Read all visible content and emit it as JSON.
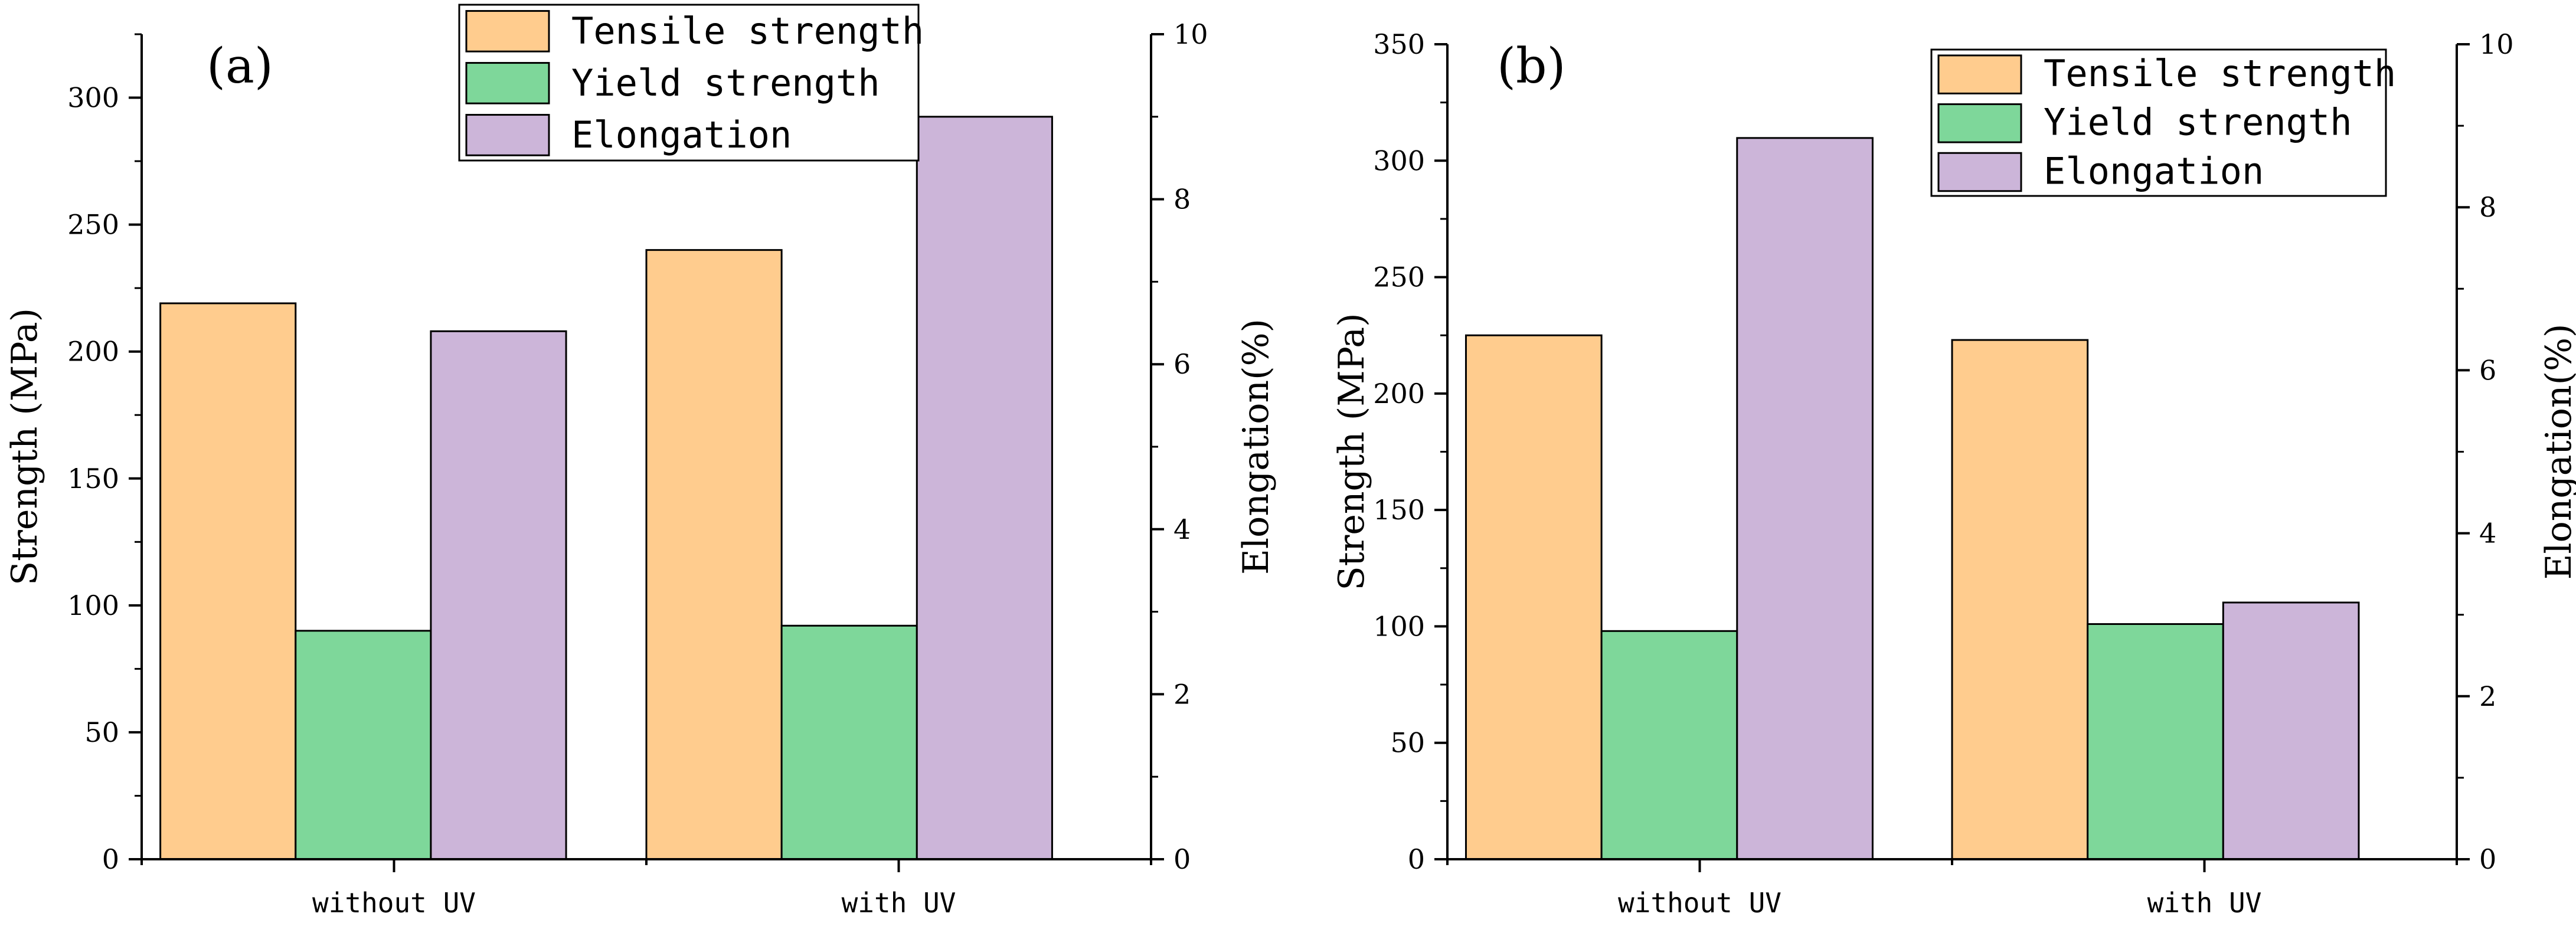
{
  "colors": {
    "tensile": "#ffcc8e",
    "yield": "#7ed79a",
    "elongation": "#ccb5d9",
    "outline": "#000000"
  },
  "chart_data": [
    {
      "type": "bar",
      "panel_label": "(a)",
      "categories": [
        "without UV",
        "with UV"
      ],
      "ylabel": "Strength (MPa)",
      "y2label": "Elongation(%)",
      "ylim": [
        0,
        325
      ],
      "y2lim": [
        0,
        10
      ],
      "yticks": [
        0,
        50,
        100,
        150,
        200,
        250,
        300
      ],
      "y2ticks": [
        0,
        2,
        4,
        6,
        8,
        10
      ],
      "legend_position": "top-center",
      "series": [
        {
          "name": "Tensile strength",
          "axis": "left",
          "color_key": "tensile",
          "values": [
            219,
            240
          ]
        },
        {
          "name": "Yield strength",
          "axis": "left",
          "color_key": "yield",
          "values": [
            90,
            92
          ]
        },
        {
          "name": "Elongation",
          "axis": "right",
          "color_key": "elongation",
          "values": [
            6.4,
            9.0
          ]
        }
      ]
    },
    {
      "type": "bar",
      "panel_label": "(b)",
      "categories": [
        "without UV",
        "with UV"
      ],
      "ylabel": "Strength (MPa)",
      "y2label": "Elongation(%)",
      "ylim": [
        0,
        350
      ],
      "y2lim": [
        0,
        10
      ],
      "yticks": [
        0,
        50,
        100,
        150,
        200,
        250,
        300,
        350
      ],
      "y2ticks": [
        0,
        2,
        4,
        6,
        8,
        10
      ],
      "legend_position": "top-right",
      "series": [
        {
          "name": "Tensile strength",
          "axis": "left",
          "color_key": "tensile",
          "values": [
            225,
            223
          ]
        },
        {
          "name": "Yield strength",
          "axis": "left",
          "color_key": "yield",
          "values": [
            98,
            101
          ]
        },
        {
          "name": "Elongation",
          "axis": "right",
          "color_key": "elongation",
          "values": [
            8.85,
            3.15
          ]
        }
      ]
    }
  ]
}
